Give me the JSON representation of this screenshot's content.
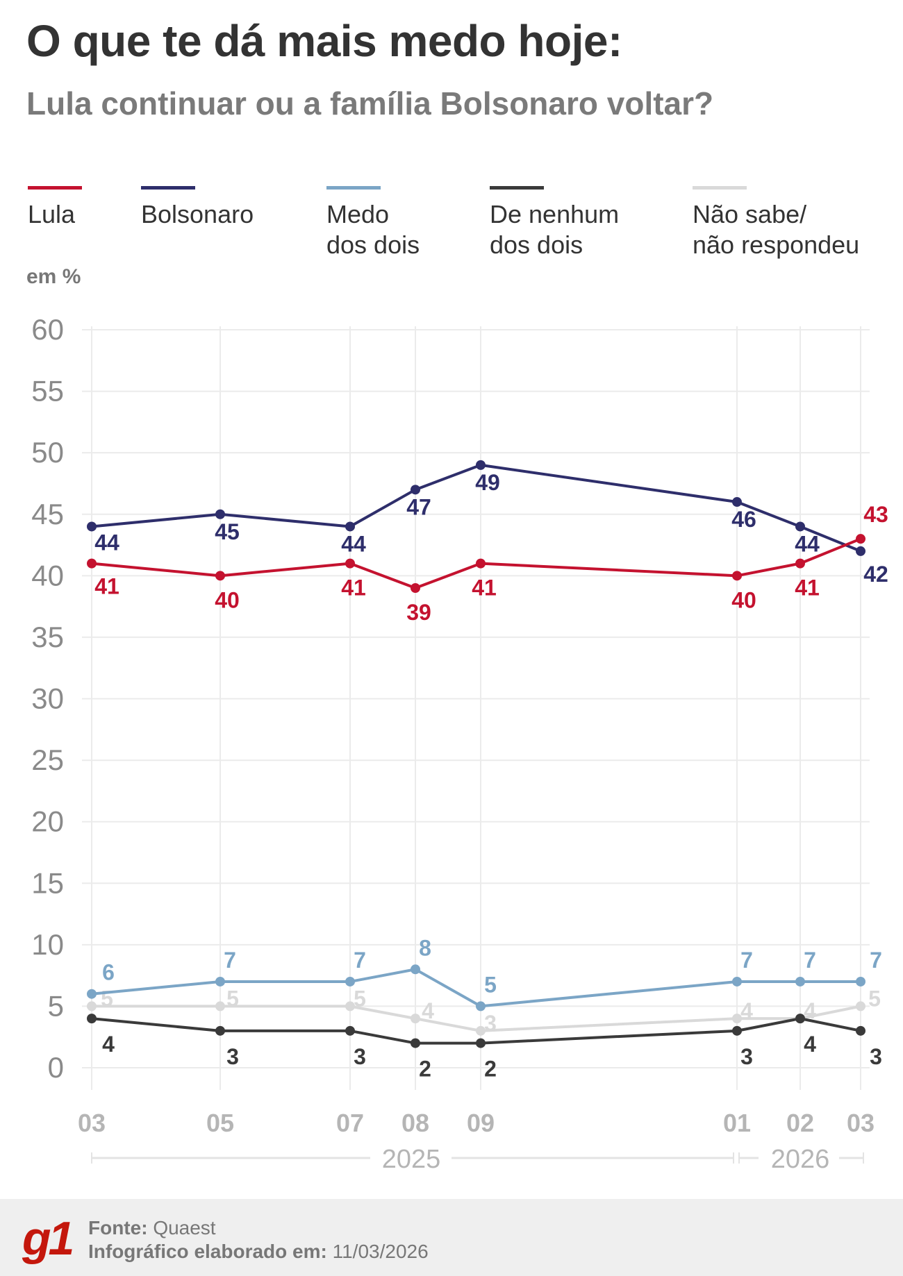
{
  "title": "O que te dá mais medo hoje:",
  "subtitle": "Lula continuar ou a família Bolsonaro voltar?",
  "unit_label": "em %",
  "footer": {
    "logo": "g1",
    "source_label": "Fonte:",
    "source_value": "Quaest",
    "made_label": "Infográfico elaborado em:",
    "made_value": "11/03/2026"
  },
  "chart_data": {
    "type": "line",
    "title": "O que te dá mais medo hoje: Lula continuar ou a família Bolsonaro voltar?",
    "ylabel": "em %",
    "ylim": [
      0,
      60
    ],
    "yticks": [
      "0",
      "5",
      "10",
      "15",
      "20",
      "25",
      "30",
      "35",
      "40",
      "45",
      "50",
      "55",
      "60"
    ],
    "grid": true,
    "legend": "top",
    "x": [
      "03",
      "05",
      "07",
      "08",
      "09",
      "01",
      "02",
      "03"
    ],
    "x_dates": [
      "2025-03",
      "2025-05",
      "2025-07",
      "2025-08",
      "2025-09",
      "2026-01",
      "2026-02",
      "2026-03"
    ],
    "year_groups": [
      {
        "label": "2025"
      },
      {
        "label": "2026"
      }
    ],
    "series": [
      {
        "name": "Lula",
        "color": "#c4122f",
        "values": [
          41,
          40,
          41,
          39,
          41,
          40,
          41,
          43
        ]
      },
      {
        "name": "Bolsonaro",
        "color": "#2e2e6b",
        "values": [
          44,
          45,
          44,
          47,
          49,
          46,
          44,
          42
        ]
      },
      {
        "name": "Medo dos dois",
        "color": "#7ba5c6",
        "values": [
          6,
          7,
          7,
          8,
          5,
          7,
          7,
          7
        ]
      },
      {
        "name": "De nenhum dos dois",
        "color": "#3a3a3a",
        "values": [
          4,
          3,
          3,
          2,
          2,
          3,
          4,
          3
        ]
      },
      {
        "name": "Não sabe/ não respondeu",
        "color": "#d9d9d9",
        "values": [
          5,
          5,
          5,
          4,
          3,
          4,
          4,
          5
        ]
      }
    ],
    "legend_lines": [
      [
        "Lula"
      ],
      [
        "Bolsonaro"
      ],
      [
        "Medo",
        "dos dois"
      ],
      [
        "De nenhum",
        "dos dois"
      ],
      [
        "Não sabe/",
        "não respondeu"
      ]
    ]
  }
}
